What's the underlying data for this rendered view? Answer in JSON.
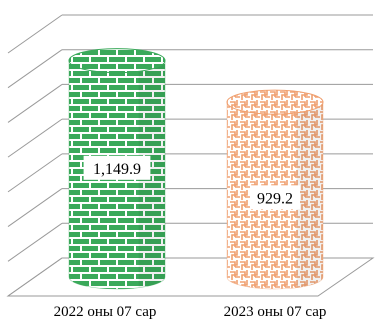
{
  "chart_data": {
    "type": "bar",
    "style": "3d-cylinder",
    "categories": [
      "2022 оны 07 сар",
      "2023 оны 07 сар"
    ],
    "values": [
      1149.9,
      929.2
    ],
    "value_labels": [
      "1,149.9",
      "929.2"
    ],
    "ylim": [
      0,
      1400
    ],
    "grid": true,
    "legend": "none",
    "colors": {
      "bar1_line": "#3aa95a",
      "bar1_fill": "#ffffff",
      "bar2_line": "#f0a070",
      "bar2_fill": "#ffffff",
      "grid": "#9a9a9a",
      "text": "#000000"
    },
    "patterns": [
      "brick",
      "weave"
    ]
  }
}
